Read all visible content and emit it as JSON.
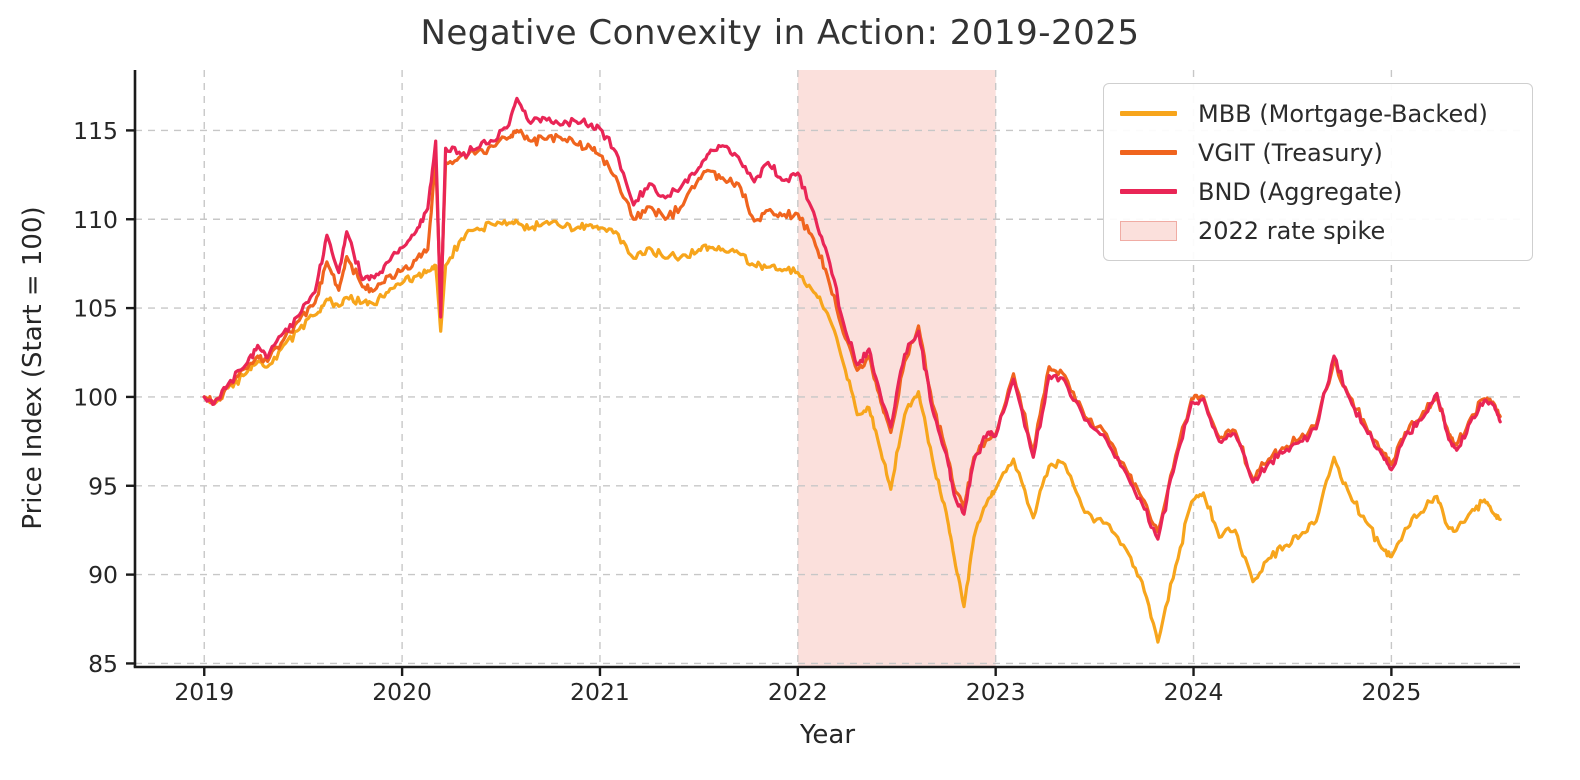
{
  "chart_data": {
    "type": "line",
    "title": "Negative Convexity in Action: 2019-2025",
    "xlabel": "Year",
    "ylabel": "Price Index (Start = 100)",
    "xlim": [
      2018.65,
      2025.65
    ],
    "ylim": [
      84.8,
      118.4
    ],
    "x_ticks": [
      2019,
      2020,
      2021,
      2022,
      2023,
      2024,
      2025
    ],
    "y_ticks": [
      85,
      90,
      95,
      100,
      105,
      110,
      115
    ],
    "grid": true,
    "grid_style": "dashed",
    "legend_position": "upper right",
    "band": {
      "label": "2022 rate spike",
      "x_start": 2022,
      "x_end": 2023,
      "fill": "#FBE0DC",
      "border": "#F0ACA4"
    },
    "x": [
      2019.0,
      2019.05,
      2019.12,
      2019.21,
      2019.27,
      2019.32,
      2019.4,
      2019.48,
      2019.56,
      2019.62,
      2019.68,
      2019.72,
      2019.8,
      2019.86,
      2019.93,
      2020.0,
      2020.07,
      2020.13,
      2020.17,
      2020.195,
      2020.22,
      2020.3,
      2020.38,
      2020.46,
      2020.54,
      2020.58,
      2020.65,
      2020.72,
      2020.8,
      2020.88,
      2020.95,
      2021.0,
      2021.08,
      2021.17,
      2021.25,
      2021.33,
      2021.42,
      2021.5,
      2021.56,
      2021.63,
      2021.7,
      2021.78,
      2021.85,
      2021.92,
      2022.0,
      2022.08,
      2022.15,
      2022.23,
      2022.3,
      2022.36,
      2022.42,
      2022.47,
      2022.54,
      2022.61,
      2022.68,
      2022.75,
      2022.79,
      2022.84,
      2022.89,
      2022.96,
      2023.0,
      2023.09,
      2023.19,
      2023.27,
      2023.35,
      2023.45,
      2023.56,
      2023.66,
      2023.74,
      2023.82,
      2023.91,
      2023.99,
      2024.05,
      2024.13,
      2024.21,
      2024.3,
      2024.38,
      2024.46,
      2024.54,
      2024.62,
      2024.71,
      2024.79,
      2024.87,
      2024.95,
      2025.0,
      2025.07,
      2025.15,
      2025.23,
      2025.29,
      2025.33,
      2025.4,
      2025.47,
      2025.52,
      2025.55
    ],
    "series": [
      {
        "id": "mbb",
        "name": "MBB (Mortgage-Backed)",
        "color": "#F7A51C",
        "values": [
          100.0,
          99.6,
          100.5,
          101.3,
          102.0,
          101.7,
          102.9,
          103.8,
          104.6,
          105.5,
          105.1,
          105.6,
          105.3,
          105.2,
          105.9,
          106.4,
          106.8,
          107.1,
          107.4,
          103.7,
          107.4,
          108.9,
          109.5,
          109.7,
          109.8,
          109.9,
          109.5,
          109.8,
          109.6,
          109.5,
          109.7,
          109.5,
          109.3,
          107.8,
          108.4,
          107.8,
          108.0,
          108.3,
          108.4,
          108.2,
          108.1,
          107.4,
          107.3,
          107.1,
          107.0,
          105.9,
          104.7,
          101.9,
          99.0,
          99.4,
          96.9,
          94.8,
          99.0,
          100.3,
          96.5,
          93.5,
          91.0,
          88.2,
          92.1,
          94.2,
          94.8,
          96.5,
          93.2,
          96.1,
          96.2,
          93.5,
          92.9,
          91.4,
          89.6,
          86.2,
          90.5,
          94.1,
          94.6,
          92.1,
          92.5,
          89.6,
          90.9,
          91.6,
          92.2,
          93.0,
          96.6,
          94.5,
          93.0,
          91.5,
          91.0,
          92.6,
          93.5,
          94.4,
          92.6,
          92.5,
          93.5,
          94.2,
          93.4,
          93.1
        ]
      },
      {
        "id": "vgit",
        "name": "VGIT (Treasury)",
        "color": "#F0641E",
        "values": [
          100.0,
          99.7,
          100.6,
          101.6,
          102.3,
          102.0,
          103.2,
          104.3,
          105.3,
          107.6,
          106.0,
          107.9,
          106.2,
          106.0,
          106.8,
          107.1,
          107.7,
          108.3,
          113.4,
          105.1,
          113.2,
          113.6,
          113.8,
          114.1,
          114.6,
          115.0,
          114.4,
          114.5,
          114.6,
          114.2,
          114.1,
          113.6,
          112.4,
          110.0,
          110.7,
          110.0,
          110.8,
          112.3,
          112.7,
          112.2,
          112.0,
          109.9,
          110.5,
          110.2,
          110.3,
          108.9,
          106.8,
          103.6,
          101.5,
          102.3,
          99.7,
          98.0,
          102.0,
          104.0,
          99.6,
          97.0,
          94.9,
          93.8,
          96.6,
          97.6,
          97.9,
          101.3,
          96.9,
          101.7,
          101.2,
          98.9,
          97.9,
          95.9,
          94.3,
          92.4,
          96.7,
          99.9,
          100.0,
          97.7,
          98.1,
          95.4,
          96.5,
          97.1,
          97.7,
          98.4,
          102.0,
          100.0,
          98.4,
          97.0,
          96.2,
          98.0,
          98.9,
          100.0,
          97.9,
          97.3,
          98.8,
          99.9,
          99.6,
          98.9
        ]
      },
      {
        "id": "bnd",
        "name": "BND (Aggregate)",
        "color": "#E92556",
        "values": [
          100.0,
          99.6,
          100.7,
          101.8,
          102.9,
          102.2,
          103.6,
          104.6,
          105.9,
          109.1,
          107.0,
          109.3,
          106.6,
          106.7,
          107.6,
          108.4,
          109.3,
          110.6,
          114.4,
          104.5,
          114.0,
          113.6,
          114.0,
          114.4,
          115.3,
          116.8,
          115.4,
          115.7,
          115.3,
          115.5,
          115.3,
          115.1,
          113.8,
          110.8,
          112.0,
          111.2,
          112.0,
          112.9,
          113.9,
          114.1,
          113.5,
          112.1,
          113.2,
          112.2,
          112.6,
          110.4,
          108.0,
          104.2,
          101.8,
          102.7,
          100.0,
          98.3,
          102.4,
          103.7,
          99.3,
          96.8,
          94.5,
          93.4,
          96.4,
          98.0,
          97.8,
          101.0,
          96.6,
          101.2,
          100.9,
          98.7,
          97.6,
          95.7,
          94.0,
          92.0,
          96.4,
          99.7,
          99.9,
          97.5,
          97.9,
          95.2,
          96.3,
          96.9,
          97.5,
          98.2,
          102.3,
          99.9,
          98.2,
          96.8,
          95.9,
          97.8,
          98.7,
          100.2,
          97.6,
          97.0,
          98.6,
          99.8,
          99.5,
          98.6
        ]
      }
    ]
  }
}
